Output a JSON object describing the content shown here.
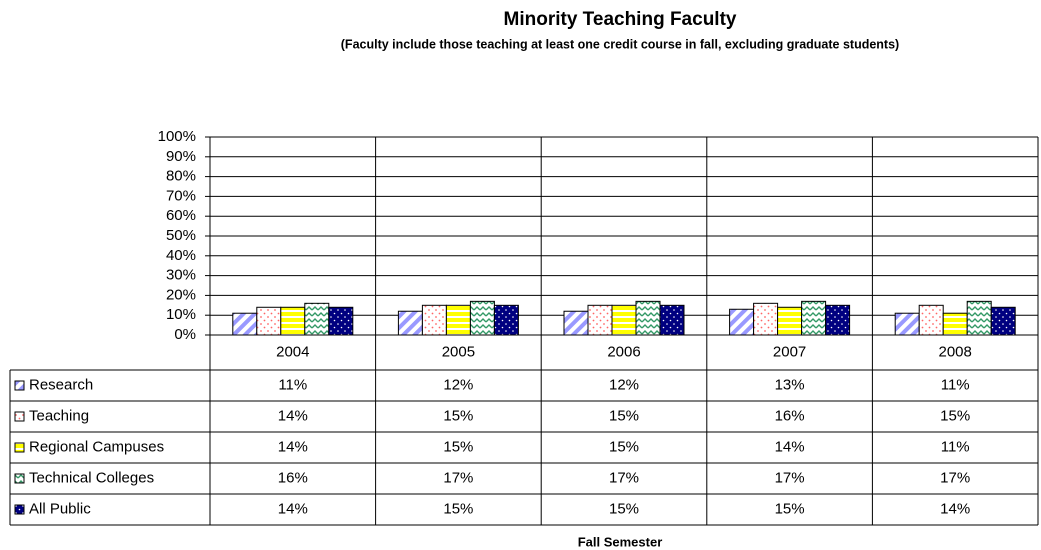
{
  "chart_data": {
    "type": "bar",
    "title": "Minority Teaching Faculty",
    "subtitle": "(Faculty include those teaching at least one credit course in fall, excluding graduate students)",
    "x_label": "Fall Semester",
    "categories": [
      "2004",
      "2005",
      "2006",
      "2007",
      "2008"
    ],
    "series": [
      {
        "name": "Research",
        "color": "#9999ff",
        "values": [
          11,
          12,
          12,
          13,
          11
        ],
        "value_labels": [
          "11%",
          "12%",
          "12%",
          "13%",
          "11%"
        ]
      },
      {
        "name": "Teaching",
        "color": "#ff6666",
        "values": [
          14,
          15,
          15,
          16,
          15
        ],
        "value_labels": [
          "14%",
          "15%",
          "15%",
          "16%",
          "15%"
        ]
      },
      {
        "name": "Regional Campuses",
        "color": "#ffff00",
        "values": [
          14,
          15,
          15,
          14,
          11
        ],
        "value_labels": [
          "14%",
          "15%",
          "15%",
          "14%",
          "11%"
        ]
      },
      {
        "name": "Technical Colleges",
        "color": "#339966",
        "values": [
          16,
          17,
          17,
          17,
          17
        ],
        "value_labels": [
          "16%",
          "17%",
          "17%",
          "17%",
          "17%"
        ]
      },
      {
        "name": "All Public",
        "color": "#000080",
        "values": [
          14,
          15,
          15,
          15,
          14
        ],
        "value_labels": [
          "14%",
          "15%",
          "15%",
          "15%",
          "14%"
        ]
      }
    ],
    "ylim": [
      0,
      100
    ],
    "yticks": [
      {
        "value": 0,
        "label": "0%"
      },
      {
        "value": 10,
        "label": "10%"
      },
      {
        "value": 20,
        "label": "20%"
      },
      {
        "value": 30,
        "label": "30%"
      },
      {
        "value": 40,
        "label": "40%"
      },
      {
        "value": 50,
        "label": "50%"
      },
      {
        "value": 60,
        "label": "60%"
      },
      {
        "value": 70,
        "label": "70%"
      },
      {
        "value": 80,
        "label": "80%"
      },
      {
        "value": 90,
        "label": "90%"
      },
      {
        "value": 100,
        "label": "100%"
      }
    ],
    "grid": true
  }
}
